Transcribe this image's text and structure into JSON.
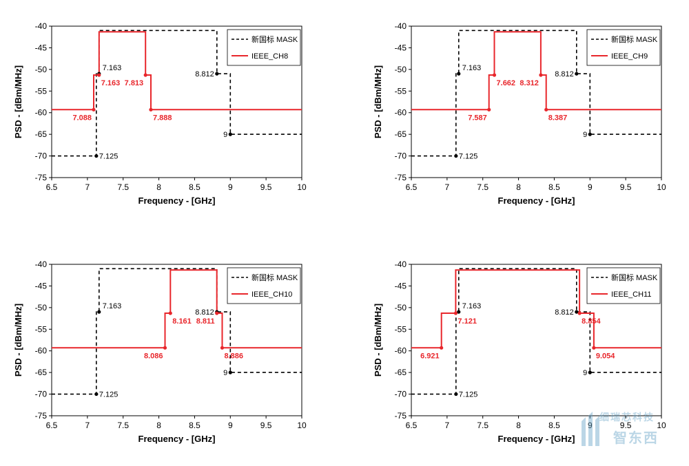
{
  "watermark": {
    "line1": "细瑞芯科技",
    "line2": "智东西",
    "color": "#6aa6c8"
  },
  "colors": {
    "mask": "#000000",
    "ieee": "#e8262b"
  },
  "chart_data": [
    {
      "type": "line",
      "xlabel": "Frequency - [GHz]",
      "ylabel": "PSD - [dBm/MHz]",
      "xlim": [
        6.5,
        10
      ],
      "ylim": [
        -75,
        -40
      ],
      "xticks": [
        6.5,
        7,
        7.5,
        8,
        8.5,
        9,
        9.5,
        10
      ],
      "yticks": [
        -40,
        -45,
        -50,
        -55,
        -60,
        -65,
        -70,
        -75
      ],
      "grid": false,
      "legend": "top-right",
      "series": [
        {
          "name": "新国标 MASK",
          "style": "dashed",
          "color": "#000000",
          "x": [
            6.5,
            7.125,
            7.125,
            7.163,
            7.163,
            8.812,
            8.812,
            9,
            9,
            10
          ],
          "y": [
            -70,
            -70,
            -51,
            -51,
            -41,
            -41,
            -51,
            -51,
            -65,
            -65
          ]
        },
        {
          "name": "IEEE_CH8",
          "style": "solid",
          "color": "#e8262b",
          "x": [
            6.5,
            7.088,
            7.088,
            7.163,
            7.163,
            7.813,
            7.813,
            7.888,
            7.888,
            10
          ],
          "y": [
            -59.3,
            -59.3,
            -51.3,
            -51.3,
            -41.3,
            -41.3,
            -51.3,
            -51.3,
            -59.3,
            -59.3
          ]
        }
      ],
      "mask_points": [
        {
          "label": "7.125",
          "x": 7.125,
          "y": -70,
          "pos": "right"
        },
        {
          "label": "7.163",
          "x": 7.163,
          "y": -51,
          "pos": "above-right"
        },
        {
          "label": "8.812",
          "x": 8.812,
          "y": -51,
          "pos": "left"
        },
        {
          "label": "9",
          "x": 9,
          "y": -65,
          "pos": "left"
        }
      ],
      "ieee_points": [
        {
          "label": "7.088",
          "x": 7.088,
          "y": -59.3,
          "pos": "below-left"
        },
        {
          "label": "7.163",
          "x": 7.163,
          "y": -51.3,
          "pos": "below-right"
        },
        {
          "label": "7.813",
          "x": 7.813,
          "y": -51.3,
          "pos": "below-left"
        },
        {
          "label": "7.888",
          "x": 7.888,
          "y": -59.3,
          "pos": "below-right"
        }
      ]
    },
    {
      "type": "line",
      "xlabel": "Frequency - [GHz]",
      "ylabel": "PSD - [dBm/MHz]",
      "xlim": [
        6.5,
        10
      ],
      "ylim": [
        -75,
        -40
      ],
      "xticks": [
        6.5,
        7,
        7.5,
        8,
        8.5,
        9,
        9.5,
        10
      ],
      "yticks": [
        -40,
        -45,
        -50,
        -55,
        -60,
        -65,
        -70,
        -75
      ],
      "grid": false,
      "legend": "top-right",
      "series": [
        {
          "name": "新国标 MASK",
          "style": "dashed",
          "color": "#000000",
          "x": [
            6.5,
            7.125,
            7.125,
            7.163,
            7.163,
            8.812,
            8.812,
            9,
            9,
            10
          ],
          "y": [
            -70,
            -70,
            -51,
            -51,
            -41,
            -41,
            -51,
            -51,
            -65,
            -65
          ]
        },
        {
          "name": "IEEE_CH9",
          "style": "solid",
          "color": "#e8262b",
          "x": [
            6.5,
            7.587,
            7.587,
            7.662,
            7.662,
            8.312,
            8.312,
            8.387,
            8.387,
            10
          ],
          "y": [
            -59.3,
            -59.3,
            -51.3,
            -51.3,
            -41.3,
            -41.3,
            -51.3,
            -51.3,
            -59.3,
            -59.3
          ]
        }
      ],
      "mask_points": [
        {
          "label": "7.125",
          "x": 7.125,
          "y": -70,
          "pos": "right"
        },
        {
          "label": "7.163",
          "x": 7.163,
          "y": -51,
          "pos": "above-right"
        },
        {
          "label": "8.812",
          "x": 8.812,
          "y": -51,
          "pos": "left"
        },
        {
          "label": "9",
          "x": 9,
          "y": -65,
          "pos": "left"
        }
      ],
      "ieee_points": [
        {
          "label": "7.587",
          "x": 7.587,
          "y": -59.3,
          "pos": "below-left"
        },
        {
          "label": "7.662",
          "x": 7.662,
          "y": -51.3,
          "pos": "below-right"
        },
        {
          "label": "8.312",
          "x": 8.312,
          "y": -51.3,
          "pos": "below-left"
        },
        {
          "label": "8.387",
          "x": 8.387,
          "y": -59.3,
          "pos": "below-right"
        }
      ]
    },
    {
      "type": "line",
      "xlabel": "Frequency - [GHz]",
      "ylabel": "PSD - [dBm/MHz]",
      "xlim": [
        6.5,
        10
      ],
      "ylim": [
        -75,
        -40
      ],
      "xticks": [
        6.5,
        7,
        7.5,
        8,
        8.5,
        9,
        9.5,
        10
      ],
      "yticks": [
        -40,
        -45,
        -50,
        -55,
        -60,
        -65,
        -70,
        -75
      ],
      "grid": false,
      "legend": "top-right",
      "series": [
        {
          "name": "新国标 MASK",
          "style": "dashed",
          "color": "#000000",
          "x": [
            6.5,
            7.125,
            7.125,
            7.163,
            7.163,
            8.812,
            8.812,
            9,
            9,
            10
          ],
          "y": [
            -70,
            -70,
            -51,
            -51,
            -41,
            -41,
            -51,
            -51,
            -65,
            -65
          ]
        },
        {
          "name": "IEEE_CH10",
          "style": "solid",
          "color": "#e8262b",
          "x": [
            6.5,
            8.086,
            8.086,
            8.161,
            8.161,
            8.811,
            8.811,
            8.886,
            8.886,
            10
          ],
          "y": [
            -59.3,
            -59.3,
            -51.3,
            -51.3,
            -41.3,
            -41.3,
            -51.3,
            -51.3,
            -59.3,
            -59.3
          ]
        }
      ],
      "mask_points": [
        {
          "label": "7.125",
          "x": 7.125,
          "y": -70,
          "pos": "right"
        },
        {
          "label": "7.163",
          "x": 7.163,
          "y": -51,
          "pos": "above-right"
        },
        {
          "label": "8.812",
          "x": 8.812,
          "y": -51,
          "pos": "left"
        },
        {
          "label": "9",
          "x": 9,
          "y": -65,
          "pos": "left"
        }
      ],
      "ieee_points": [
        {
          "label": "8.086",
          "x": 8.086,
          "y": -59.3,
          "pos": "below-left"
        },
        {
          "label": "8.161",
          "x": 8.161,
          "y": -51.3,
          "pos": "below-right"
        },
        {
          "label": "8.811",
          "x": 8.811,
          "y": -51.3,
          "pos": "below-left"
        },
        {
          "label": "8.886",
          "x": 8.886,
          "y": -59.3,
          "pos": "below-right"
        }
      ]
    },
    {
      "type": "line",
      "xlabel": "Frequency - [GHz]",
      "ylabel": "PSD - [dBm/MHz]",
      "xlim": [
        6.5,
        10
      ],
      "ylim": [
        -75,
        -40
      ],
      "xticks": [
        6.5,
        7,
        7.5,
        8,
        8.5,
        9,
        9.5,
        10
      ],
      "yticks": [
        -40,
        -45,
        -50,
        -55,
        -60,
        -65,
        -70,
        -75
      ],
      "grid": false,
      "legend": "top-right",
      "series": [
        {
          "name": "新国标 MASK",
          "style": "dashed",
          "color": "#000000",
          "x": [
            6.5,
            7.125,
            7.125,
            7.163,
            7.163,
            8.812,
            8.812,
            9,
            9,
            10
          ],
          "y": [
            -70,
            -70,
            -51,
            -51,
            -41,
            -41,
            -51,
            -51,
            -65,
            -65
          ]
        },
        {
          "name": "IEEE_CH11",
          "style": "solid",
          "color": "#e8262b",
          "x": [
            6.5,
            6.921,
            6.921,
            7.121,
            7.121,
            8.854,
            8.854,
            9.054,
            9.054,
            10
          ],
          "y": [
            -59.3,
            -59.3,
            -51.3,
            -51.3,
            -41.3,
            -41.3,
            -51.3,
            -51.3,
            -59.3,
            -59.3
          ]
        }
      ],
      "mask_points": [
        {
          "label": "7.125",
          "x": 7.125,
          "y": -70,
          "pos": "right"
        },
        {
          "label": "7.163",
          "x": 7.163,
          "y": -51,
          "pos": "above-right"
        },
        {
          "label": "8.812",
          "x": 8.812,
          "y": -51,
          "pos": "left"
        },
        {
          "label": "9",
          "x": 9,
          "y": -65,
          "pos": "left"
        }
      ],
      "ieee_points": [
        {
          "label": "6.921",
          "x": 6.921,
          "y": -59.3,
          "pos": "below-left"
        },
        {
          "label": "7.121",
          "x": 7.121,
          "y": -51.3,
          "pos": "below-right"
        },
        {
          "label": "8.854",
          "x": 8.854,
          "y": -51.3,
          "pos": "below-right"
        },
        {
          "label": "9.054",
          "x": 9.054,
          "y": -59.3,
          "pos": "below-right"
        }
      ]
    }
  ]
}
